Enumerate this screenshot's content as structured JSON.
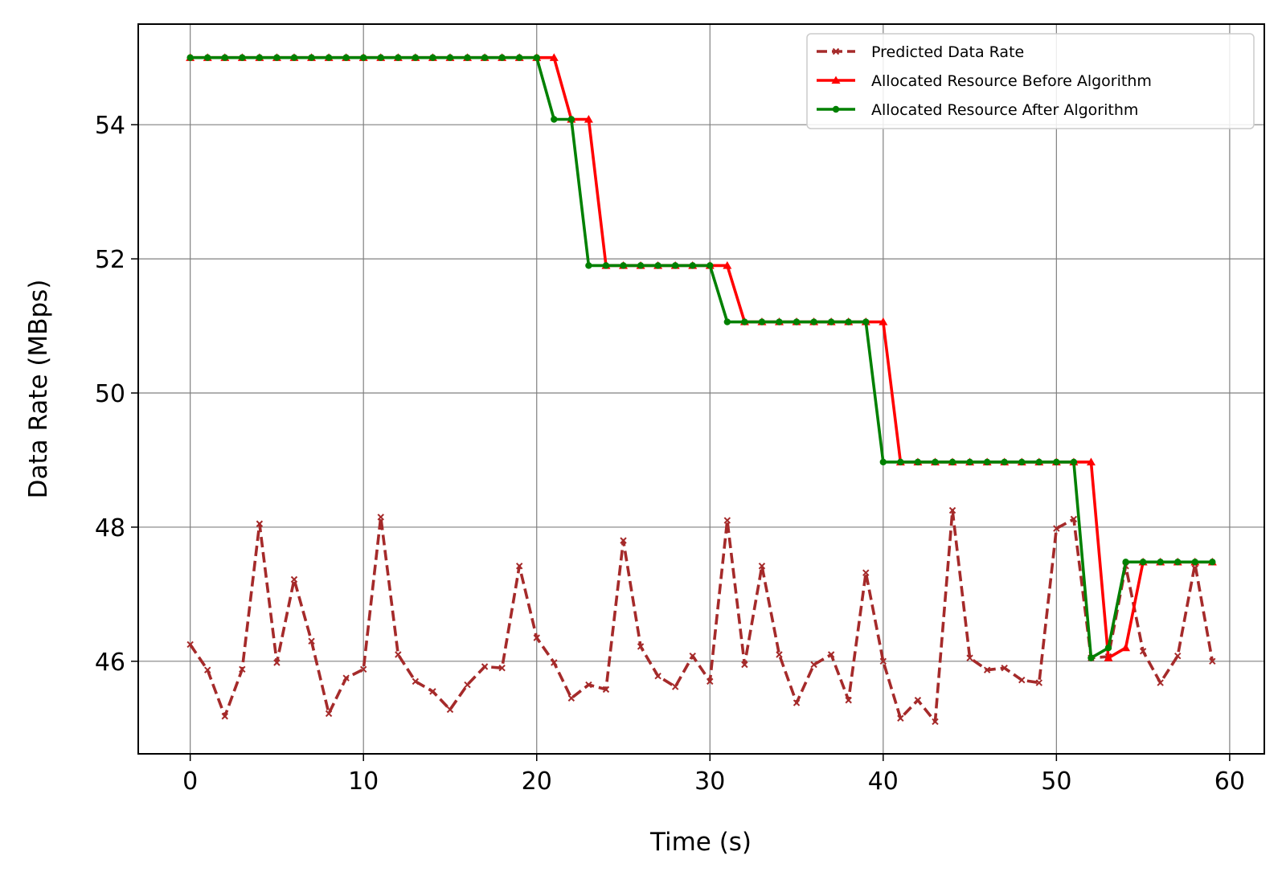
{
  "chart_data": {
    "type": "line",
    "title": "",
    "xlabel": "Time (s)",
    "ylabel": "Data Rate (MBps)",
    "xlim": [
      -3,
      62
    ],
    "ylim": [
      44.62,
      55.5
    ],
    "xticks": [
      0,
      10,
      20,
      30,
      40,
      50,
      60
    ],
    "yticks": [
      46,
      48,
      50,
      52,
      54
    ],
    "grid": true,
    "legend_position": "top-right",
    "x": [
      0,
      1,
      2,
      3,
      4,
      5,
      6,
      7,
      8,
      9,
      10,
      11,
      12,
      13,
      14,
      15,
      16,
      17,
      18,
      19,
      20,
      21,
      22,
      23,
      24,
      25,
      26,
      27,
      28,
      29,
      30,
      31,
      32,
      33,
      34,
      35,
      36,
      37,
      38,
      39,
      40,
      41,
      42,
      43,
      44,
      45,
      46,
      47,
      48,
      49,
      50,
      51,
      52,
      53,
      54,
      55,
      56,
      57,
      58,
      59
    ],
    "series": [
      {
        "name": "Predicted Data Rate",
        "color": "#a52a2a",
        "style": "dashed",
        "marker": "x",
        "values": [
          46.25,
          45.87,
          45.18,
          45.88,
          48.05,
          45.98,
          47.22,
          46.3,
          45.22,
          45.75,
          45.88,
          48.15,
          46.1,
          45.7,
          45.55,
          45.28,
          45.65,
          45.92,
          45.9,
          47.42,
          46.35,
          45.98,
          45.45,
          45.65,
          45.58,
          47.8,
          46.22,
          45.78,
          45.62,
          46.08,
          45.7,
          48.1,
          45.95,
          47.42,
          46.1,
          45.38,
          45.95,
          46.1,
          45.42,
          47.32,
          46.0,
          45.15,
          45.42,
          45.1,
          48.25,
          46.05,
          45.87,
          45.9,
          45.72,
          45.68,
          47.98,
          48.12,
          46.05,
          46.07,
          47.42,
          46.15,
          45.68,
          46.08,
          47.45,
          46.0
        ]
      },
      {
        "name": "Allocated Resource Before Algorithm",
        "color": "#ff0000",
        "style": "solid",
        "marker": "triangle",
        "values": [
          55,
          55,
          55,
          55,
          55,
          55,
          55,
          55,
          55,
          55,
          55,
          55,
          55,
          55,
          55,
          55,
          55,
          55,
          55,
          55,
          55,
          55,
          54.08,
          54.08,
          51.9,
          51.9,
          51.9,
          51.9,
          51.9,
          51.9,
          51.9,
          51.9,
          51.06,
          51.06,
          51.06,
          51.06,
          51.06,
          51.06,
          51.06,
          51.06,
          51.06,
          48.97,
          48.97,
          48.97,
          48.97,
          48.97,
          48.97,
          48.97,
          48.97,
          48.97,
          48.97,
          48.97,
          48.97,
          46.05,
          46.2,
          47.48,
          47.48,
          47.48,
          47.48,
          47.48
        ]
      },
      {
        "name": "Allocated Resource After Algorithm",
        "color": "#008000",
        "style": "solid",
        "marker": "circle",
        "values": [
          55,
          55,
          55,
          55,
          55,
          55,
          55,
          55,
          55,
          55,
          55,
          55,
          55,
          55,
          55,
          55,
          55,
          55,
          55,
          55,
          55,
          54.08,
          54.08,
          51.9,
          51.9,
          51.9,
          51.9,
          51.9,
          51.9,
          51.9,
          51.9,
          51.06,
          51.06,
          51.06,
          51.06,
          51.06,
          51.06,
          51.06,
          51.06,
          51.06,
          48.97,
          48.97,
          48.97,
          48.97,
          48.97,
          48.97,
          48.97,
          48.97,
          48.97,
          48.97,
          48.97,
          48.97,
          46.05,
          46.2,
          47.48,
          47.48,
          47.48,
          47.48,
          47.48,
          47.48
        ]
      }
    ]
  }
}
